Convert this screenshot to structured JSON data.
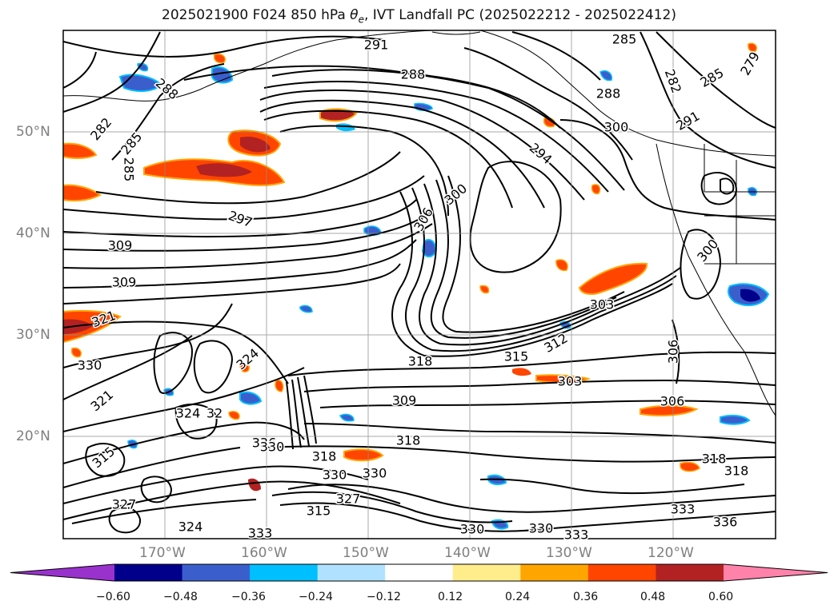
{
  "title_prefix": "2025021900 F024 850 hPa ",
  "title_symbol": "θ",
  "title_subscript": "e",
  "title_suffix": ", IVT Landfall PC (2025022212 - 2025022412)",
  "map": {
    "lat_labels": [
      "50°N",
      "40°N",
      "30°N",
      "20°N"
    ],
    "lon_labels": [
      "170°W",
      "160°W",
      "150°W",
      "140°W",
      "130°W",
      "120°W"
    ],
    "contour_labels": [
      "291",
      "288",
      "288",
      "285",
      "288",
      "279",
      "285",
      "282",
      "300",
      "291",
      "282",
      "285",
      "294",
      "285",
      "300",
      "297",
      "306",
      "300",
      "309",
      "309",
      "321",
      "303",
      "330",
      "324",
      "312",
      "315",
      "306",
      "318",
      "303",
      "309",
      "321",
      "306",
      "336",
      "324",
      "32",
      "318",
      "330",
      "318",
      "318",
      "330",
      "330",
      "327",
      "315",
      "333",
      "318",
      "315",
      "336",
      "330",
      "333",
      "324",
      "327",
      "330",
      "333"
    ]
  },
  "colorbar": {
    "ticks": [
      "−0.60",
      "−0.48",
      "−0.36",
      "−0.24",
      "−0.12",
      "0.12",
      "0.24",
      "0.36",
      "0.48",
      "0.60"
    ],
    "colors": [
      "#9932cc",
      "#00008b",
      "#3a5fcd",
      "#00bfff",
      "#b0e2ff",
      "#ffffff",
      "#ffec8b",
      "#ffa500",
      "#ff4500",
      "#b22222",
      "#ff82ab"
    ]
  }
}
